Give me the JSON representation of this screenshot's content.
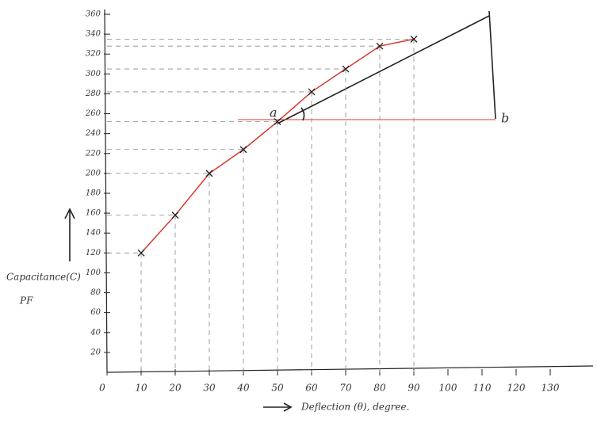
{
  "chart_data": {
    "type": "line",
    "y_axis_title": "Capacitance(C)",
    "y_axis_unit": "PF",
    "x_axis_title": "Deflection (θ), degree.",
    "annotations": [
      "a",
      "b"
    ],
    "x": [
      10,
      20,
      30,
      40,
      50,
      60,
      70,
      80,
      90
    ],
    "series": [
      {
        "color": "#d9382b",
        "values": [
          120,
          158,
          200,
          224,
          252,
          282,
          305,
          328,
          335
        ]
      }
    ],
    "xlim": [
      0,
      140
    ],
    "xticks": [
      0,
      10,
      20,
      30,
      40,
      50,
      60,
      70,
      80,
      90,
      100,
      110,
      120,
      130
    ],
    "ylim": [
      0,
      360
    ],
    "yticks": [
      20,
      40,
      60,
      80,
      100,
      120,
      140,
      160,
      180,
      200,
      220,
      240,
      260,
      280,
      300,
      320,
      340,
      360
    ],
    "grid": false
  }
}
